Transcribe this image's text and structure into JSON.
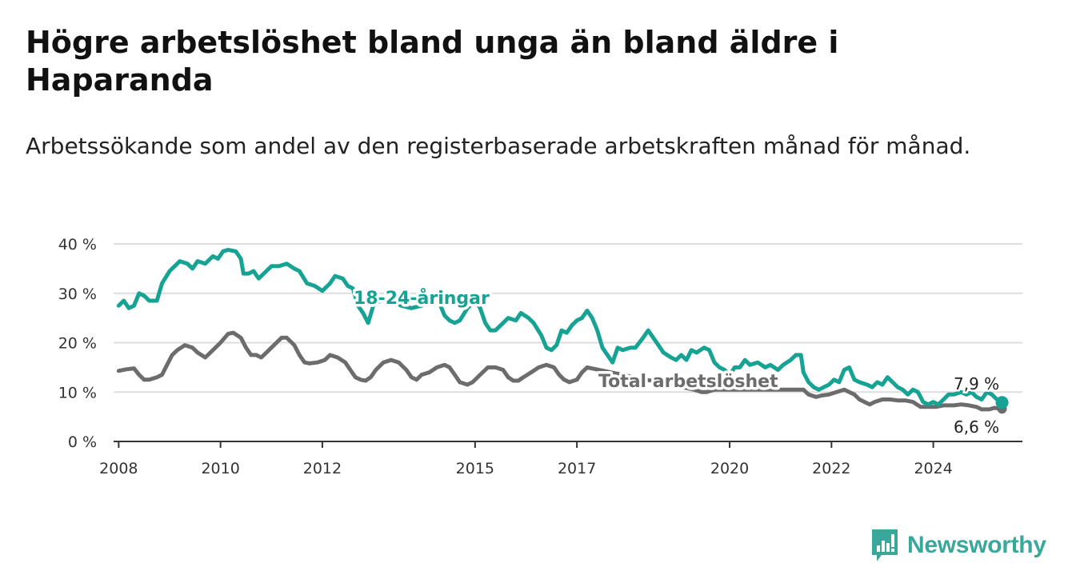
{
  "title": "Högre arbetslöshet bland unga än bland äldre i Haparanda",
  "subtitle": "Arbetssökande som andel av den registerbaserade arbetskraften månad för månad.",
  "brand": {
    "name": "Newsworthy",
    "icon": "newsworthy-logo-icon",
    "color": "#3aa79b"
  },
  "chart_data": {
    "type": "line",
    "xlim": [
      2007.9,
      2025.75
    ],
    "ylim": [
      0,
      40
    ],
    "y_ticks": [
      0,
      10,
      20,
      30,
      40
    ],
    "y_tick_labels": [
      "0 %",
      "10 %",
      "20 %",
      "30 %",
      "40 %"
    ],
    "x_ticks": [
      2008,
      2010,
      2012,
      2015,
      2017,
      2020,
      2022,
      2024
    ],
    "x_tick_labels": [
      "2008",
      "2010",
      "2012",
      "2015",
      "2017",
      "2020",
      "2022",
      "2024"
    ],
    "grid": true,
    "series": [
      {
        "name": "18-24-åringar",
        "color": "#16a394",
        "end_label": "7,9 %",
        "points": [
          [
            2008.0,
            27.5
          ],
          [
            2008.1,
            28.5
          ],
          [
            2008.2,
            27.0
          ],
          [
            2008.3,
            27.5
          ],
          [
            2008.4,
            30.0
          ],
          [
            2008.5,
            29.5
          ],
          [
            2008.6,
            28.5
          ],
          [
            2008.75,
            28.5
          ],
          [
            2008.85,
            32.0
          ],
          [
            2009.0,
            34.5
          ],
          [
            2009.1,
            35.5
          ],
          [
            2009.2,
            36.5
          ],
          [
            2009.35,
            36.0
          ],
          [
            2009.45,
            35.0
          ],
          [
            2009.55,
            36.5
          ],
          [
            2009.7,
            36.0
          ],
          [
            2009.85,
            37.5
          ],
          [
            2009.95,
            37.0
          ],
          [
            2010.05,
            38.5
          ],
          [
            2010.15,
            38.8
          ],
          [
            2010.3,
            38.5
          ],
          [
            2010.4,
            37.0
          ],
          [
            2010.45,
            34.0
          ],
          [
            2010.55,
            34.0
          ],
          [
            2010.65,
            34.5
          ],
          [
            2010.75,
            33.0
          ],
          [
            2010.9,
            34.5
          ],
          [
            2011.0,
            35.5
          ],
          [
            2011.15,
            35.5
          ],
          [
            2011.3,
            36.0
          ],
          [
            2011.45,
            35.0
          ],
          [
            2011.55,
            34.5
          ],
          [
            2011.7,
            32.0
          ],
          [
            2011.85,
            31.5
          ],
          [
            2012.0,
            30.5
          ],
          [
            2012.15,
            32.0
          ],
          [
            2012.25,
            33.5
          ],
          [
            2012.4,
            33.0
          ],
          [
            2012.5,
            31.5
          ],
          [
            2012.6,
            31.0
          ],
          [
            2012.7,
            27.5
          ],
          [
            2012.8,
            26.0
          ],
          [
            2012.9,
            24.0
          ],
          [
            2013.0,
            27.5
          ],
          [
            2013.2,
            29.0
          ],
          [
            2013.35,
            28.5
          ],
          [
            2013.55,
            27.5
          ],
          [
            2013.75,
            27.0
          ],
          [
            2013.95,
            27.5
          ],
          [
            2014.1,
            28.5
          ],
          [
            2014.3,
            28.0
          ],
          [
            2014.4,
            25.5
          ],
          [
            2014.5,
            24.5
          ],
          [
            2014.6,
            24.0
          ],
          [
            2014.7,
            24.5
          ],
          [
            2014.85,
            27.0
          ],
          [
            2015.0,
            28.5
          ],
          [
            2015.1,
            27.0
          ],
          [
            2015.2,
            24.0
          ],
          [
            2015.3,
            22.5
          ],
          [
            2015.4,
            22.5
          ],
          [
            2015.5,
            23.5
          ],
          [
            2015.65,
            25.0
          ],
          [
            2015.8,
            24.5
          ],
          [
            2015.9,
            26.0
          ],
          [
            2016.05,
            25.0
          ],
          [
            2016.15,
            24.0
          ],
          [
            2016.3,
            21.5
          ],
          [
            2016.4,
            19.0
          ],
          [
            2016.5,
            18.5
          ],
          [
            2016.6,
            19.5
          ],
          [
            2016.7,
            22.5
          ],
          [
            2016.8,
            22.0
          ],
          [
            2016.9,
            23.5
          ],
          [
            2017.0,
            24.5
          ],
          [
            2017.1,
            25.0
          ],
          [
            2017.2,
            26.5
          ],
          [
            2017.3,
            25.0
          ],
          [
            2017.4,
            22.5
          ],
          [
            2017.5,
            19.0
          ],
          [
            2017.6,
            17.5
          ],
          [
            2017.7,
            16.0
          ],
          [
            2017.8,
            19.0
          ],
          [
            2017.9,
            18.5
          ],
          [
            2018.05,
            19.0
          ],
          [
            2018.15,
            19.0
          ],
          [
            2018.3,
            21.0
          ],
          [
            2018.4,
            22.5
          ],
          [
            2018.5,
            21.0
          ],
          [
            2018.6,
            19.5
          ],
          [
            2018.7,
            18.0
          ],
          [
            2018.85,
            17.0
          ],
          [
            2018.95,
            16.5
          ],
          [
            2019.05,
            17.5
          ],
          [
            2019.15,
            16.5
          ],
          [
            2019.25,
            18.5
          ],
          [
            2019.35,
            18.0
          ],
          [
            2019.5,
            19.0
          ],
          [
            2019.6,
            18.5
          ],
          [
            2019.7,
            16.0
          ],
          [
            2019.8,
            15.0
          ],
          [
            2019.9,
            14.5
          ],
          [
            2020.0,
            13.5
          ],
          [
            2020.1,
            15.0
          ],
          [
            2020.2,
            15.0
          ],
          [
            2020.3,
            16.5
          ],
          [
            2020.4,
            15.5
          ],
          [
            2020.55,
            16.0
          ],
          [
            2020.7,
            15.0
          ],
          [
            2020.8,
            15.5
          ],
          [
            2020.95,
            14.5
          ],
          [
            2021.05,
            15.5
          ],
          [
            2021.2,
            16.5
          ],
          [
            2021.3,
            17.5
          ],
          [
            2021.4,
            17.5
          ],
          [
            2021.45,
            14.0
          ],
          [
            2021.55,
            12.0
          ],
          [
            2021.65,
            11.0
          ],
          [
            2021.75,
            10.5
          ],
          [
            2021.85,
            11.0
          ],
          [
            2021.95,
            11.5
          ],
          [
            2022.05,
            12.5
          ],
          [
            2022.15,
            12.0
          ],
          [
            2022.25,
            14.5
          ],
          [
            2022.35,
            15.0
          ],
          [
            2022.45,
            12.5
          ],
          [
            2022.55,
            12.0
          ],
          [
            2022.7,
            11.5
          ],
          [
            2022.8,
            11.0
          ],
          [
            2022.9,
            12.0
          ],
          [
            2023.0,
            11.5
          ],
          [
            2023.1,
            13.0
          ],
          [
            2023.2,
            12.0
          ],
          [
            2023.3,
            11.0
          ],
          [
            2023.4,
            10.5
          ],
          [
            2023.5,
            9.5
          ],
          [
            2023.6,
            10.5
          ],
          [
            2023.7,
            10.0
          ],
          [
            2023.8,
            8.0
          ],
          [
            2023.9,
            7.5
          ],
          [
            2024.0,
            8.0
          ],
          [
            2024.1,
            7.5
          ],
          [
            2024.2,
            8.5
          ],
          [
            2024.3,
            9.5
          ],
          [
            2024.4,
            9.5
          ],
          [
            2024.55,
            10.0
          ],
          [
            2024.65,
            9.5
          ],
          [
            2024.75,
            10.0
          ],
          [
            2024.85,
            9.0
          ],
          [
            2024.95,
            8.5
          ],
          [
            2025.05,
            10.0
          ],
          [
            2025.15,
            9.5
          ],
          [
            2025.25,
            8.5
          ],
          [
            2025.35,
            7.9
          ]
        ]
      },
      {
        "name": "Total arbetslöshet",
        "color": "#6c6c6c",
        "end_label": "6,6 %",
        "points": [
          [
            2008.0,
            14.3
          ],
          [
            2008.15,
            14.6
          ],
          [
            2008.3,
            14.8
          ],
          [
            2008.4,
            13.5
          ],
          [
            2008.5,
            12.5
          ],
          [
            2008.6,
            12.5
          ],
          [
            2008.75,
            13.0
          ],
          [
            2008.85,
            13.5
          ],
          [
            2008.95,
            15.5
          ],
          [
            2009.05,
            17.5
          ],
          [
            2009.15,
            18.5
          ],
          [
            2009.3,
            19.5
          ],
          [
            2009.45,
            19.0
          ],
          [
            2009.55,
            18.0
          ],
          [
            2009.7,
            17.0
          ],
          [
            2009.85,
            18.5
          ],
          [
            2010.0,
            20.0
          ],
          [
            2010.15,
            21.8
          ],
          [
            2010.25,
            22.0
          ],
          [
            2010.4,
            21.0
          ],
          [
            2010.5,
            19.0
          ],
          [
            2010.6,
            17.5
          ],
          [
            2010.7,
            17.5
          ],
          [
            2010.8,
            17.0
          ],
          [
            2010.9,
            18.0
          ],
          [
            2011.05,
            19.5
          ],
          [
            2011.2,
            21.0
          ],
          [
            2011.3,
            21.0
          ],
          [
            2011.45,
            19.5
          ],
          [
            2011.55,
            17.5
          ],
          [
            2011.65,
            16.0
          ],
          [
            2011.75,
            15.8
          ],
          [
            2011.9,
            16.0
          ],
          [
            2012.05,
            16.5
          ],
          [
            2012.15,
            17.5
          ],
          [
            2012.3,
            17.0
          ],
          [
            2012.45,
            16.0
          ],
          [
            2012.55,
            14.5
          ],
          [
            2012.65,
            13.0
          ],
          [
            2012.75,
            12.5
          ],
          [
            2012.85,
            12.3
          ],
          [
            2012.95,
            13.0
          ],
          [
            2013.05,
            14.5
          ],
          [
            2013.2,
            16.0
          ],
          [
            2013.35,
            16.5
          ],
          [
            2013.5,
            16.0
          ],
          [
            2013.65,
            14.5
          ],
          [
            2013.75,
            13.0
          ],
          [
            2013.85,
            12.5
          ],
          [
            2013.95,
            13.5
          ],
          [
            2014.1,
            14.0
          ],
          [
            2014.25,
            15.0
          ],
          [
            2014.4,
            15.5
          ],
          [
            2014.5,
            15.0
          ],
          [
            2014.6,
            13.5
          ],
          [
            2014.7,
            12.0
          ],
          [
            2014.85,
            11.5
          ],
          [
            2014.95,
            12.0
          ],
          [
            2015.1,
            13.5
          ],
          [
            2015.25,
            15.0
          ],
          [
            2015.4,
            15.0
          ],
          [
            2015.55,
            14.5
          ],
          [
            2015.65,
            13.0
          ],
          [
            2015.75,
            12.3
          ],
          [
            2015.85,
            12.3
          ],
          [
            2015.95,
            13.0
          ],
          [
            2016.1,
            14.0
          ],
          [
            2016.25,
            15.0
          ],
          [
            2016.4,
            15.5
          ],
          [
            2016.55,
            15.0
          ],
          [
            2016.65,
            13.5
          ],
          [
            2016.75,
            12.5
          ],
          [
            2016.85,
            12.0
          ],
          [
            2017.0,
            12.5
          ],
          [
            2017.1,
            14.0
          ],
          [
            2017.2,
            15.0
          ],
          [
            2019.3,
            10.5
          ],
          [
            2019.45,
            10.0
          ],
          [
            2019.55,
            10.0
          ],
          [
            2019.7,
            10.5
          ],
          [
            2021.45,
            10.5
          ],
          [
            2021.55,
            9.5
          ],
          [
            2021.7,
            9.0
          ],
          [
            2021.8,
            9.3
          ],
          [
            2021.95,
            9.5
          ],
          [
            2022.1,
            10.0
          ],
          [
            2022.25,
            10.5
          ],
          [
            2022.35,
            10.0
          ],
          [
            2022.45,
            9.5
          ],
          [
            2022.55,
            8.5
          ],
          [
            2022.65,
            8.0
          ],
          [
            2022.75,
            7.5
          ],
          [
            2022.85,
            8.0
          ],
          [
            2023.0,
            8.5
          ],
          [
            2023.15,
            8.5
          ],
          [
            2023.3,
            8.3
          ],
          [
            2023.45,
            8.3
          ],
          [
            2023.6,
            8.0
          ],
          [
            2023.75,
            7.0
          ],
          [
            2023.9,
            7.0
          ],
          [
            2024.05,
            7.0
          ],
          [
            2024.2,
            7.3
          ],
          [
            2024.4,
            7.3
          ],
          [
            2024.55,
            7.5
          ],
          [
            2024.7,
            7.3
          ],
          [
            2024.85,
            7.0
          ],
          [
            2024.95,
            6.5
          ],
          [
            2025.1,
            6.5
          ],
          [
            2025.2,
            6.8
          ],
          [
            2025.35,
            6.6
          ]
        ]
      }
    ]
  }
}
